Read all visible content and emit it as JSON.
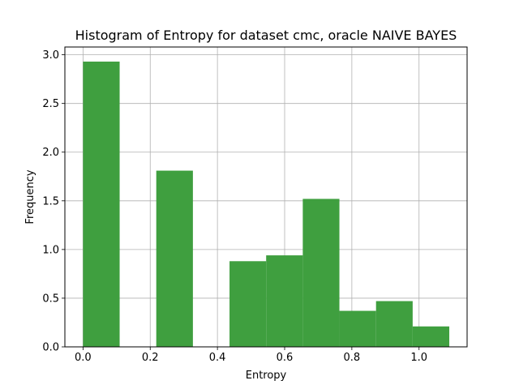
{
  "chart_data": {
    "type": "bar",
    "title": "Histogram of Entropy for dataset cmc, oracle NAIVE BAYES",
    "xlabel": "Entropy",
    "ylabel": "Frequency",
    "xlim": [
      -0.054,
      1.143
    ],
    "ylim": [
      0,
      3.08
    ],
    "x_ticks": [
      {
        "value": 0.0,
        "label": "0.0"
      },
      {
        "value": 0.2,
        "label": "0.2"
      },
      {
        "value": 0.4,
        "label": "0.4"
      },
      {
        "value": 0.6,
        "label": "0.6"
      },
      {
        "value": 0.8,
        "label": "0.8"
      },
      {
        "value": 1.0,
        "label": "1.0"
      }
    ],
    "y_ticks": [
      {
        "value": 0.0,
        "label": "0.0"
      },
      {
        "value": 0.5,
        "label": "0.5"
      },
      {
        "value": 1.0,
        "label": "1.0"
      },
      {
        "value": 1.5,
        "label": "1.5"
      },
      {
        "value": 2.0,
        "label": "2.0"
      },
      {
        "value": 2.5,
        "label": "2.5"
      },
      {
        "value": 3.0,
        "label": "3.0"
      }
    ],
    "grid": true,
    "bar_color": "#3f9f3f",
    "bins": [
      {
        "x0": 0.0,
        "x1": 0.109,
        "value": 2.93
      },
      {
        "x0": 0.109,
        "x1": 0.218,
        "value": 0.0
      },
      {
        "x0": 0.218,
        "x1": 0.327,
        "value": 1.81
      },
      {
        "x0": 0.327,
        "x1": 0.436,
        "value": 0.0
      },
      {
        "x0": 0.436,
        "x1": 0.545,
        "value": 0.88
      },
      {
        "x0": 0.545,
        "x1": 0.654,
        "value": 0.94
      },
      {
        "x0": 0.654,
        "x1": 0.763,
        "value": 1.52
      },
      {
        "x0": 0.763,
        "x1": 0.872,
        "value": 0.37
      },
      {
        "x0": 0.872,
        "x1": 0.981,
        "value": 0.47
      },
      {
        "x0": 0.981,
        "x1": 1.09,
        "value": 0.21
      }
    ]
  }
}
